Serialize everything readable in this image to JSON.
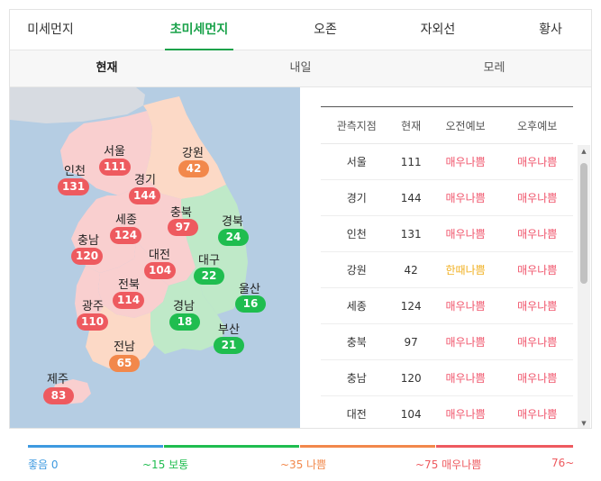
{
  "tabs": [
    {
      "label": "미세먼지",
      "active": false
    },
    {
      "label": "초미세먼지",
      "active": true
    },
    {
      "label": "오존",
      "active": false
    },
    {
      "label": "자외선",
      "active": false
    },
    {
      "label": "황사",
      "active": false
    }
  ],
  "subtabs": [
    {
      "label": "현재",
      "active": true
    },
    {
      "label": "내일",
      "active": false
    },
    {
      "label": "모레",
      "active": false
    }
  ],
  "colors": {
    "good": "#1fbd4f",
    "normal": "#f2884b",
    "bad": "#f06a6a",
    "very_bad": "#ee5a5f",
    "forecast_bad": "#f0546b",
    "forecast_normal": "#f1b021",
    "accent": "#1aa24a",
    "sea": "#b5cde3"
  },
  "map": {
    "regions": [
      {
        "name": "서울",
        "value": "111",
        "level": "very_bad"
      },
      {
        "name": "인천",
        "value": "131",
        "level": "very_bad"
      },
      {
        "name": "경기",
        "value": "144",
        "level": "very_bad"
      },
      {
        "name": "강원",
        "value": "42",
        "level": "normal"
      },
      {
        "name": "충북",
        "value": "97",
        "level": "very_bad"
      },
      {
        "name": "세종",
        "value": "124",
        "level": "very_bad"
      },
      {
        "name": "경북",
        "value": "24",
        "level": "good"
      },
      {
        "name": "충남",
        "value": "120",
        "level": "very_bad"
      },
      {
        "name": "대전",
        "value": "104",
        "level": "very_bad"
      },
      {
        "name": "대구",
        "value": "22",
        "level": "good"
      },
      {
        "name": "울산",
        "value": "16",
        "level": "good"
      },
      {
        "name": "전북",
        "value": "114",
        "level": "very_bad"
      },
      {
        "name": "경남",
        "value": "18",
        "level": "good"
      },
      {
        "name": "광주",
        "value": "110",
        "level": "very_bad"
      },
      {
        "name": "부산",
        "value": "21",
        "level": "good"
      },
      {
        "name": "전남",
        "value": "65",
        "level": "normal"
      },
      {
        "name": "제주",
        "value": "83",
        "level": "very_bad"
      }
    ]
  },
  "table": {
    "headers": [
      "관측지점",
      "현재",
      "오전예보",
      "오후예보"
    ],
    "rows": [
      {
        "station": "서울",
        "current": "111",
        "am": "매우나쁨",
        "pm": "매우나쁨",
        "am_level": "bad",
        "pm_level": "bad"
      },
      {
        "station": "경기",
        "current": "144",
        "am": "매우나쁨",
        "pm": "매우나쁨",
        "am_level": "bad",
        "pm_level": "bad"
      },
      {
        "station": "인천",
        "current": "131",
        "am": "매우나쁨",
        "pm": "매우나쁨",
        "am_level": "bad",
        "pm_level": "bad"
      },
      {
        "station": "강원",
        "current": "42",
        "am": "한때나쁨",
        "pm": "매우나쁨",
        "am_level": "normal",
        "pm_level": "bad"
      },
      {
        "station": "세종",
        "current": "124",
        "am": "매우나쁨",
        "pm": "매우나쁨",
        "am_level": "bad",
        "pm_level": "bad"
      },
      {
        "station": "충북",
        "current": "97",
        "am": "매우나쁨",
        "pm": "매우나쁨",
        "am_level": "bad",
        "pm_level": "bad"
      },
      {
        "station": "충남",
        "current": "120",
        "am": "매우나쁨",
        "pm": "매우나쁨",
        "am_level": "bad",
        "pm_level": "bad"
      },
      {
        "station": "대전",
        "current": "104",
        "am": "매우나쁨",
        "pm": "매우나쁨",
        "am_level": "bad",
        "pm_level": "bad"
      }
    ]
  },
  "legend": {
    "items": [
      {
        "start": "좋음 0",
        "color": "#3e9ae0"
      },
      {
        "start": "~15 보통",
        "color": "#1fbd4f"
      },
      {
        "start": "~35 나쁨",
        "color": "#f2884b"
      },
      {
        "start": "~75 매우나쁨",
        "color": "#ee5a5f"
      }
    ],
    "end": "76~"
  }
}
